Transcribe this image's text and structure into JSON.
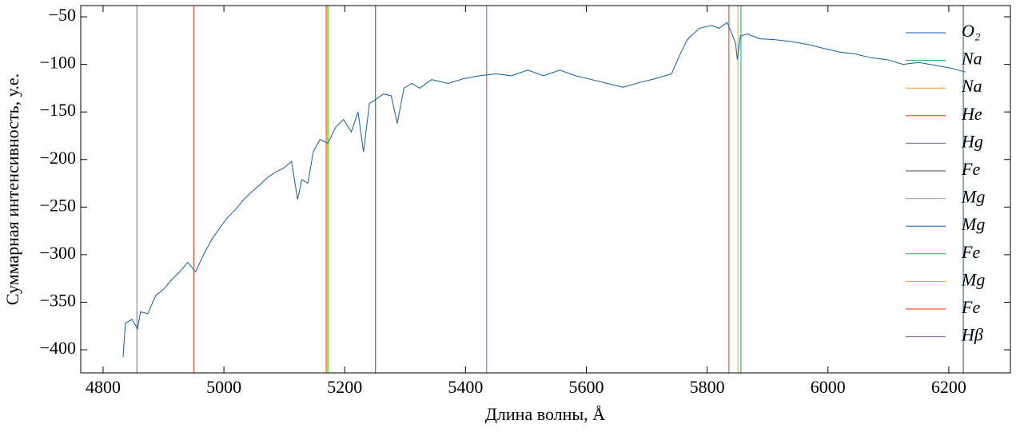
{
  "chart_data": {
    "type": "line",
    "xlabel": "Длина волны,  Å",
    "ylabel": "Суммарная интенсивность, у.е.",
    "x": [
      4833,
      4837,
      4848,
      4857,
      4862,
      4874,
      4887,
      4901,
      4914,
      4927,
      4940,
      4953,
      4967,
      4980,
      4993,
      5006,
      5020,
      5033,
      5046,
      5059,
      5072,
      5086,
      5099,
      5112,
      5122,
      5129,
      5139,
      5148,
      5159,
      5172,
      5185,
      5198,
      5211,
      5222,
      5231,
      5241,
      5251,
      5264,
      5277,
      5287,
      5298,
      5311,
      5324,
      5344,
      5371,
      5397,
      5423,
      5450,
      5476,
      5503,
      5529,
      5556,
      5582,
      5609,
      5635,
      5661,
      5688,
      5714,
      5741,
      5754,
      5767,
      5787,
      5807,
      5820,
      5833,
      5840,
      5847,
      5850,
      5855,
      5867,
      5886,
      5913,
      5939,
      5966,
      5992,
      6019,
      6045,
      6071,
      6098,
      6124,
      6151,
      6177,
      6204,
      6228
    ],
    "series": [
      {
        "name": "O₂",
        "color": "#0C5DA5",
        "values": [
          -407.6,
          -372,
          -368,
          -378,
          -360,
          -362,
          -343,
          -336,
          -326,
          -318,
          -308,
          -318,
          -299,
          -284,
          -272,
          -261,
          -252,
          -242,
          -234,
          -227,
          -219,
          -213,
          -209,
          -202,
          -242,
          -221,
          -225,
          -192,
          -179,
          -183,
          -166,
          -158,
          -171,
          -150,
          -192,
          -141,
          -137,
          -131,
          -133,
          -162,
          -125,
          -120,
          -125,
          -116,
          -120,
          -115,
          -112,
          -110,
          -112,
          -106,
          -112,
          -106,
          -112,
          -116,
          -120,
          -124,
          -119,
          -115,
          -110,
          -91,
          -74,
          -62,
          -59,
          -62,
          -56,
          -66,
          -78,
          -95,
          -70,
          -68,
          -73,
          -74,
          -76,
          -79,
          -83,
          -87,
          -89,
          -93,
          -95,
          -100,
          -98,
          -101,
          -104,
          -108
        ]
      }
    ],
    "vlines": [
      {
        "name": "Na",
        "color": "#00B945",
        "x": 5856
      },
      {
        "name": "Na",
        "color": "#FF9500",
        "x": 5851
      },
      {
        "name": "He",
        "color": "#FF2C00",
        "x": 5836
      },
      {
        "name": "Hg",
        "color": "#845B97",
        "x": 5435
      },
      {
        "name": "Fe",
        "color": "#474747",
        "x": 5251
      },
      {
        "name": "Mg",
        "color": "#9e9e9e",
        "x": 5169
      },
      {
        "name": "Mg",
        "color": "#0C5DA5",
        "x": 6224
      },
      {
        "name": "Fe",
        "color": "#00B945",
        "x": 5172
      },
      {
        "name": "Mg",
        "color": "#FF9500",
        "x": 5170
      },
      {
        "name": "Fe",
        "color": "#FF2C00",
        "x": 4950
      },
      {
        "name": "Hβ",
        "color": "#845B97",
        "x": 4856
      }
    ],
    "xlim": [
      4763,
      6302
    ],
    "ylim": [
      -424.3,
      -38.2
    ],
    "xticks": [
      4800,
      5000,
      5200,
      5400,
      5600,
      5800,
      6000,
      6200
    ],
    "yticks": [
      {
        "value": -400,
        "label": "−400"
      },
      {
        "value": -350,
        "label": "−350"
      },
      {
        "value": -300,
        "label": "−300"
      },
      {
        "value": -250,
        "label": "−250"
      },
      {
        "value": -200,
        "label": "−200"
      },
      {
        "value": -150,
        "label": "−150"
      },
      {
        "value": -100,
        "label": "−100"
      },
      {
        "value": -50,
        "label": "−50"
      }
    ],
    "legend": "upper right"
  }
}
